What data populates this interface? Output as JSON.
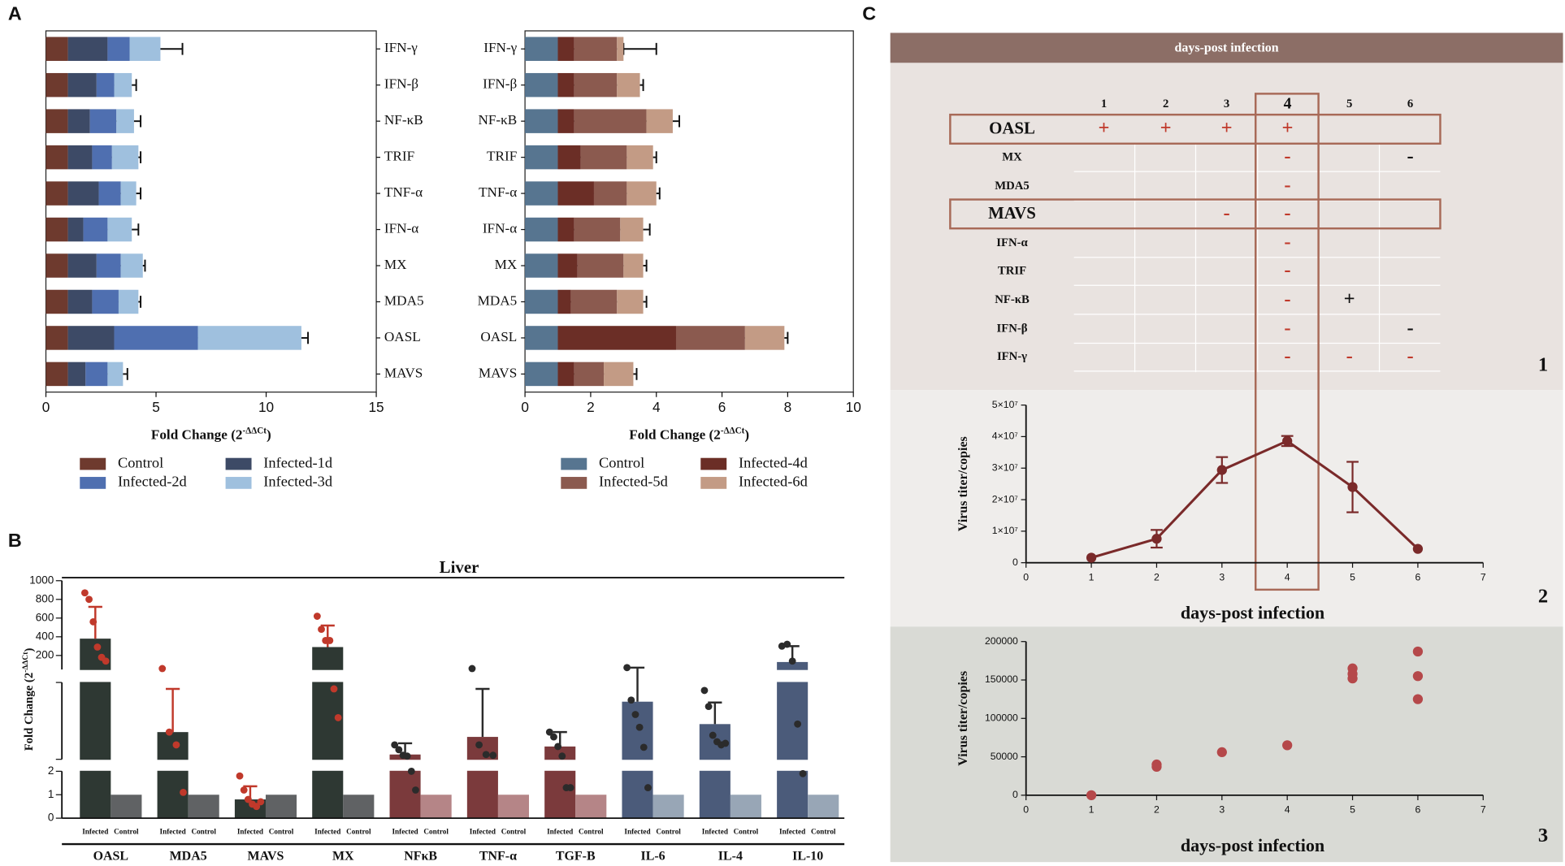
{
  "panels": [
    "A",
    "B",
    "C"
  ],
  "panel_c_sections": [
    "1",
    "2",
    "3"
  ],
  "panel_c_table": {
    "header": "days-post infection",
    "columns": [
      "1",
      "2",
      "3",
      "4",
      "5",
      "6"
    ],
    "rows": [
      {
        "label": "OASL",
        "cells": [
          "+",
          "+",
          "+",
          "+",
          null,
          null
        ],
        "colors": [
          "#c0392b",
          "#c0392b",
          "#c0392b",
          "#c0392b",
          null,
          null
        ]
      },
      {
        "label": "MX",
        "cells": [
          null,
          null,
          null,
          "-",
          null,
          "-"
        ],
        "colors": [
          null,
          null,
          null,
          "#c0392b",
          null,
          "#111111"
        ]
      },
      {
        "label": "MDA5",
        "cells": [
          null,
          null,
          null,
          "-",
          null,
          null
        ],
        "colors": [
          null,
          null,
          null,
          "#c0392b",
          null,
          null
        ]
      },
      {
        "label": "MAVS",
        "cells": [
          null,
          null,
          "-",
          "-",
          null,
          null
        ],
        "colors": [
          null,
          null,
          "#c0392b",
          "#c0392b",
          null,
          null
        ]
      },
      {
        "label": "IFN-α",
        "cells": [
          null,
          null,
          null,
          "-",
          null,
          null
        ],
        "colors": [
          null,
          null,
          null,
          "#c0392b",
          null,
          null
        ]
      },
      {
        "label": "TRIF",
        "cells": [
          null,
          null,
          null,
          "-",
          null,
          null
        ],
        "colors": [
          null,
          null,
          null,
          "#c0392b",
          null,
          null
        ]
      },
      {
        "label": "NF-κB",
        "cells": [
          null,
          null,
          null,
          "-",
          "+",
          null
        ],
        "colors": [
          null,
          null,
          null,
          "#c0392b",
          "#111111",
          null
        ]
      },
      {
        "label": "IFN-β",
        "cells": [
          null,
          null,
          null,
          "-",
          null,
          "-"
        ],
        "colors": [
          null,
          null,
          null,
          "#c0392b",
          null,
          "#111111"
        ]
      },
      {
        "label": "IFN-γ",
        "cells": [
          null,
          null,
          null,
          "-",
          "-",
          "-"
        ],
        "colors": [
          null,
          null,
          null,
          "#c0392b",
          "#c0392b",
          "#c0392b"
        ]
      }
    ]
  },
  "chart_data": [
    {
      "type": "bar",
      "horizontal": true,
      "stacked": true,
      "xlabel_parts": [
        "Fold Change (2",
        "-ΔΔCt",
        ")"
      ],
      "categories": [
        "IFN-γ",
        "IFN-β",
        "NF-κB",
        "TRIF",
        "TNF-α",
        "IFN-α",
        "MX",
        "MDA5",
        "OASL",
        "MAVS"
      ],
      "xlim": [
        0,
        15
      ],
      "xticks": [
        0,
        5,
        10,
        15
      ],
      "series": [
        {
          "name": "Control",
          "color": "#6e3a2e",
          "values": [
            1,
            1,
            1,
            1,
            1,
            1,
            1,
            1,
            1,
            1
          ]
        },
        {
          "name": "Infected-1d",
          "color": "#3d4a66",
          "values": [
            1.8,
            1.3,
            1.0,
            1.1,
            1.4,
            0.7,
            1.3,
            1.1,
            2.1,
            0.8
          ]
        },
        {
          "name": "Infected-2d",
          "color": "#4f6fb0",
          "values": [
            1.0,
            0.8,
            1.2,
            0.9,
            1.0,
            1.1,
            1.1,
            1.2,
            3.8,
            1.0
          ],
          "errors": [
            0.2,
            0.2,
            0.2,
            0.2,
            0.2,
            0.5,
            0.2,
            0.2,
            0.8,
            0.3
          ]
        },
        {
          "name": "Infected-3d",
          "color": "#9fc0de",
          "values": [
            1.4,
            0.8,
            0.8,
            1.2,
            0.7,
            1.1,
            1.0,
            0.9,
            4.7,
            0.7
          ],
          "errors": [
            1.0,
            0.2,
            0.3,
            0.1,
            0.2,
            0.3,
            0.1,
            0.1,
            0.3,
            0.2
          ]
        }
      ]
    },
    {
      "type": "bar",
      "horizontal": true,
      "stacked": true,
      "xlabel_parts": [
        "Fold Change (2",
        "-ΔΔCt",
        ")"
      ],
      "categories": [
        "IFN-γ",
        "IFN-β",
        "NF-κB",
        "TRIF",
        "TNF-α",
        "IFN-α",
        "MX",
        "MDA5",
        "OASL",
        "MAVS"
      ],
      "xlim": [
        0,
        10
      ],
      "xticks": [
        0,
        2,
        4,
        6,
        8,
        10
      ],
      "series": [
        {
          "name": "Control",
          "color": "#577590",
          "values": [
            1,
            1,
            1,
            1,
            1,
            1,
            1,
            1,
            1,
            1
          ]
        },
        {
          "name": "Infected-4d",
          "color": "#6b2e26",
          "values": [
            0.5,
            0.5,
            0.5,
            0.7,
            1.1,
            0.5,
            0.6,
            0.4,
            3.6,
            0.5
          ],
          "errors": [
            0.2,
            0.1,
            0.1,
            0.1,
            0.1,
            0.1,
            0.1,
            0.1,
            0.6,
            0.1
          ]
        },
        {
          "name": "Infected-5d",
          "color": "#8b5a4f",
          "values": [
            1.3,
            1.3,
            2.2,
            1.4,
            1.0,
            1.4,
            1.4,
            1.4,
            2.1,
            0.9
          ],
          "errors": [
            0.2,
            0.1,
            0.3,
            0.1,
            0.1,
            0.1,
            0.1,
            0.1,
            0.3,
            0.1
          ]
        },
        {
          "name": "Infected-6d",
          "color": "#c39b85",
          "values": [
            0.2,
            0.7,
            0.8,
            0.8,
            0.9,
            0.7,
            0.6,
            0.8,
            1.2,
            0.9
          ],
          "errors": [
            1.0,
            0.1,
            0.2,
            0.1,
            0.1,
            0.2,
            0.1,
            0.1,
            0.1,
            0.1
          ]
        }
      ]
    },
    {
      "type": "bar",
      "broken_axis": true,
      "title": "Liver",
      "ylabel_parts": [
        "Fold Change (2",
        "-ΔΔCt",
        ")"
      ],
      "categories": [
        "OASL",
        "MDA5",
        "MAVS",
        "MX",
        "NFκB",
        "TNF-α",
        "TGF-B",
        "IL-6",
        "IL-4",
        "IL-10"
      ],
      "ylim_segments": [
        [
          0,
          2
        ],
        [
          2,
          50
        ],
        [
          50,
          1000
        ]
      ],
      "yticks": [
        0,
        1,
        2,
        200,
        400,
        600,
        800,
        1000
      ],
      "series": [
        {
          "name": "Infected",
          "colors": [
            "#2e3833",
            "#2e3833",
            "#2e3833",
            "#2e3833",
            "#7b3a3c",
            "#7b3a3c",
            "#7b3a3c",
            "#4b5b7a",
            "#4b5b7a",
            "#4b5b7a"
          ],
          "point_colors": [
            "#c0392b",
            "#c0392b",
            "#c0392b",
            "#c0392b",
            "#2b2b2b",
            "#2b2b2b",
            "#2b2b2b",
            "#2b2b2b",
            "#2b2b2b",
            "#2b2b2b"
          ],
          "values": [
            380,
            19,
            0.8,
            290,
            5,
            16,
            10,
            38,
            24,
            130
          ],
          "errors": [
            340,
            27,
            0.56,
            230,
            7,
            30,
            9,
            32,
            13.5,
            170
          ],
          "points": [
            [
              870,
              800,
              560,
              290,
              180,
              140
            ],
            [
              60,
              19,
              11,
              1.1
            ],
            [
              1.8,
              1.2,
              0.8,
              0.6,
              0.5,
              0.7
            ],
            [
              620,
              480,
              360,
              360,
              46,
              28
            ],
            [
              11,
              8,
              4.5,
              4,
              2,
              1.2
            ],
            [
              60,
              11,
              5,
              4.5
            ],
            [
              19,
              16,
              10,
              4,
              1.3,
              1.3
            ],
            [
              70,
              39,
              30,
              22,
              9.5,
              1.3
            ],
            [
              45,
              35,
              17,
              13,
              11,
              12
            ],
            [
              300,
              320,
              140,
              24,
              1.9
            ]
          ]
        },
        {
          "name": "Control",
          "colors": [
            "#606264",
            "#606264",
            "#606264",
            "#606264",
            "#b58587",
            "#b58587",
            "#b58587",
            "#98a6b6",
            "#98a6b6",
            "#98a6b6"
          ],
          "values": [
            1,
            1,
            1,
            1,
            1,
            1,
            1,
            1,
            1,
            1
          ]
        }
      ]
    },
    {
      "type": "line",
      "xlabel": "days-post infection",
      "ylabel": "Virus titer/copies",
      "x": [
        1,
        2,
        3,
        4,
        5,
        6
      ],
      "xlim": [
        0,
        7
      ],
      "xticks": [
        0,
        1,
        2,
        3,
        4,
        5,
        6,
        7
      ],
      "ylim": [
        0,
        50000000
      ],
      "yticks": [
        0,
        {
          "value": 10000000,
          "label": "1×10⁷"
        },
        {
          "value": 20000000,
          "label": "2×10⁷"
        },
        {
          "value": 30000000,
          "label": "3×10⁷"
        },
        {
          "value": 40000000,
          "label": "4×10⁷"
        },
        {
          "value": 50000000,
          "label": "5×10⁷"
        }
      ],
      "series": [
        {
          "color": "#7a2a2a",
          "values": [
            1600000,
            7600000,
            29400000,
            38600000,
            24000000,
            4400000
          ],
          "errors": [
            null,
            2800000,
            4100000,
            1600000,
            8000000,
            null
          ]
        }
      ]
    },
    {
      "type": "scatter",
      "xlabel": "days-post infection",
      "ylabel": "Virus titer/copies",
      "x": [
        1,
        2,
        2,
        3,
        4,
        5,
        5,
        5,
        6,
        6,
        6
      ],
      "values": [
        0,
        37000,
        40000,
        56000,
        65000,
        152000,
        158000,
        165000,
        125000,
        155000,
        187000
      ],
      "color": "#b5484a",
      "xlim": [
        0,
        7
      ],
      "xticks": [
        0,
        1,
        2,
        3,
        4,
        5,
        6,
        7
      ],
      "ylim": [
        0,
        200000
      ],
      "yticks": [
        0,
        50000,
        100000,
        150000,
        200000
      ]
    }
  ]
}
